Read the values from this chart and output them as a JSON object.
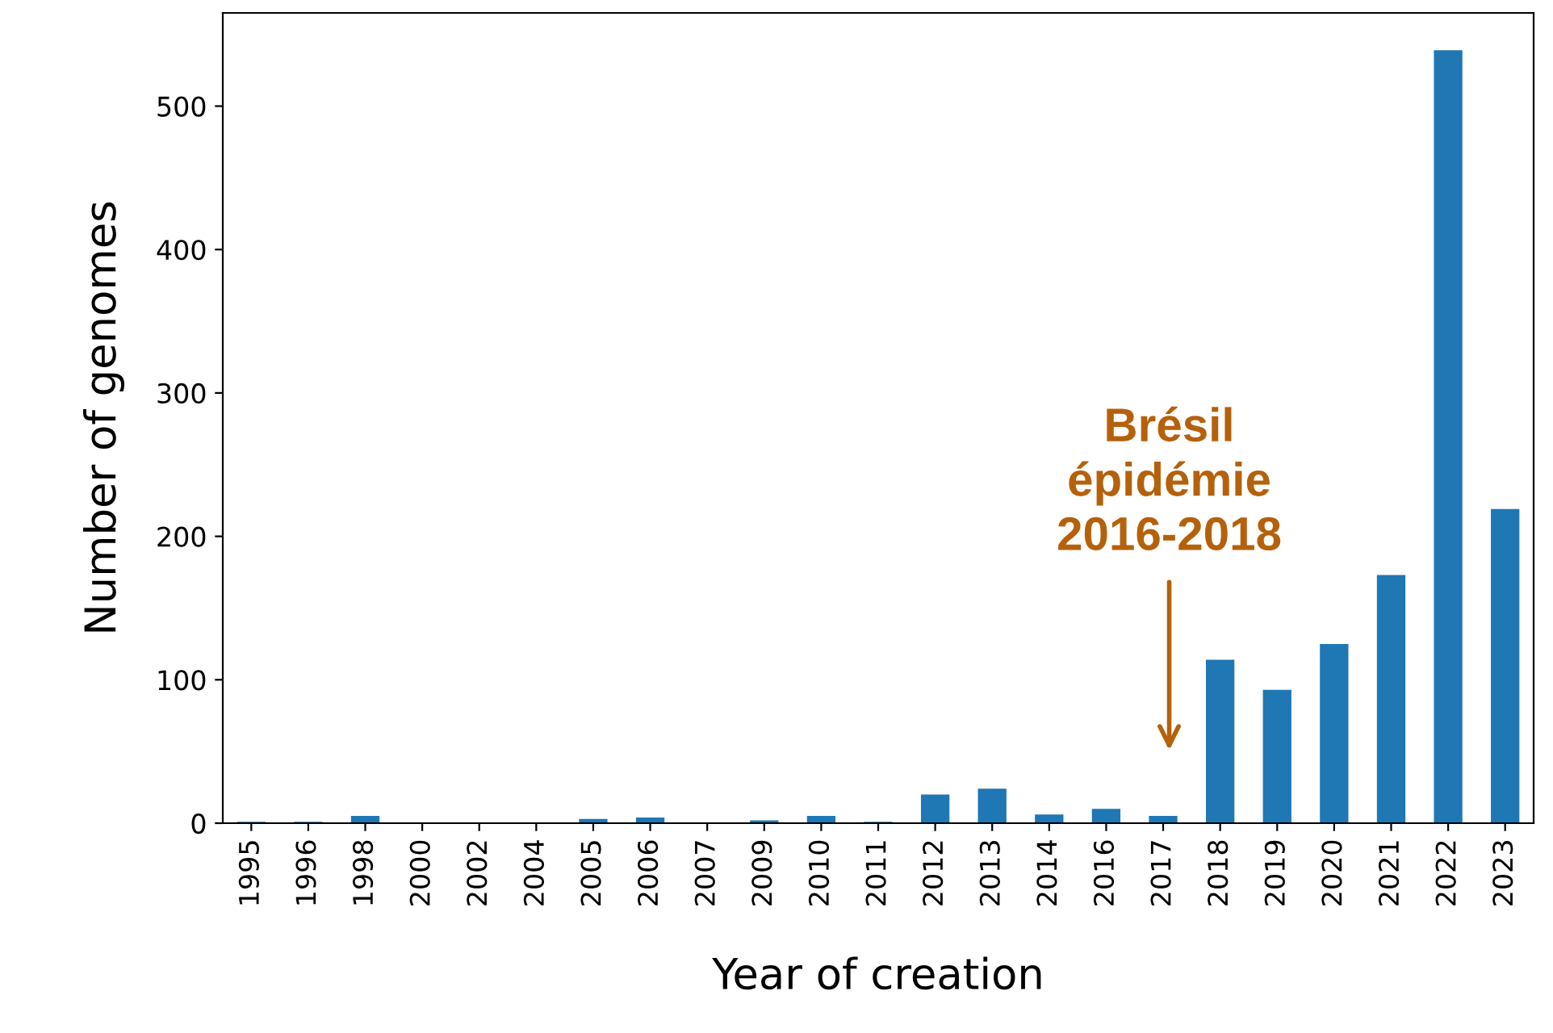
{
  "chart_data": {
    "type": "bar",
    "xlabel": "Year of creation",
    "ylabel": "Number of genomes",
    "categories": [
      "1995",
      "1996",
      "1998",
      "2000",
      "2002",
      "2004",
      "2005",
      "2006",
      "2007",
      "2009",
      "2010",
      "2011",
      "2012",
      "2013",
      "2014",
      "2016",
      "2017",
      "2018",
      "2019",
      "2020",
      "2021",
      "2022",
      "2023"
    ],
    "values": [
      1,
      1,
      5,
      0,
      0,
      0,
      3,
      4,
      0,
      2,
      5,
      1,
      20,
      24,
      6,
      10,
      5,
      114,
      93,
      125,
      173,
      539,
      219
    ],
    "color": "#1f77b4",
    "ylim": [
      0,
      565
    ],
    "yticks": [
      0,
      100,
      200,
      300,
      400,
      500
    ],
    "grid": false,
    "annotations": [
      "Brésil\népidémie\n2016-2018"
    ]
  }
}
